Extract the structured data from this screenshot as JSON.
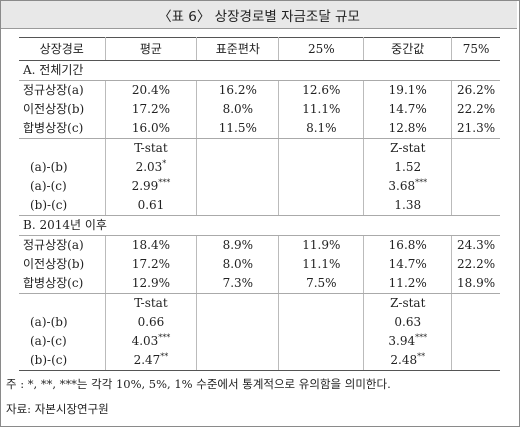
{
  "title": "〈표 6〉 상장경로별 자금조달 규모",
  "headers": [
    "상장경로",
    "평균",
    "표준편차",
    "25%",
    "중간값",
    "75%"
  ],
  "sectionA": {
    "label": "A. 전체기간",
    "rows": [
      {
        "name": "정규상장(a)",
        "mean": "20.4%",
        "sd": "16.2%",
        "p25": "12.6%",
        "median": "19.1%",
        "p75": "26.2%"
      },
      {
        "name": "이전상장(b)",
        "mean": "17.2%",
        "sd": "8.0%",
        "p25": "11.1%",
        "median": "14.7%",
        "p75": "22.2%"
      },
      {
        "name": "합병상장(c)",
        "mean": "16.0%",
        "sd": "11.5%",
        "p25": "8.1%",
        "median": "12.8%",
        "p75": "21.3%"
      }
    ],
    "t_label": "T-stat",
    "z_label": "Z-stat",
    "stats": [
      {
        "pair": "(a)-(b)",
        "t": "2.03",
        "t_sig": "*",
        "z": "1.52",
        "z_sig": ""
      },
      {
        "pair": "(a)-(c)",
        "t": "2.99",
        "t_sig": "***",
        "z": "3.68",
        "z_sig": "***"
      },
      {
        "pair": "(b)-(c)",
        "t": "0.61",
        "t_sig": "",
        "z": "1.38",
        "z_sig": ""
      }
    ]
  },
  "sectionB": {
    "label": "B. 2014년 이후",
    "rows": [
      {
        "name": "정규상장(a)",
        "mean": "18.4%",
        "sd": "8.9%",
        "p25": "11.9%",
        "median": "16.8%",
        "p75": "24.3%"
      },
      {
        "name": "이전상장(b)",
        "mean": "17.2%",
        "sd": "8.0%",
        "p25": "11.1%",
        "median": "14.7%",
        "p75": "22.2%"
      },
      {
        "name": "합병상장(c)",
        "mean": "12.9%",
        "sd": "7.3%",
        "p25": "7.5%",
        "median": "11.2%",
        "p75": "18.9%"
      }
    ],
    "t_label": "T-stat",
    "z_label": "Z-stat",
    "stats": [
      {
        "pair": "(a)-(b)",
        "t": "0.66",
        "t_sig": "",
        "z": "0.63",
        "z_sig": ""
      },
      {
        "pair": "(a)-(c)",
        "t": "4.03",
        "t_sig": "***",
        "z": "3.94",
        "z_sig": "***"
      },
      {
        "pair": "(b)-(c)",
        "t": "2.47",
        "t_sig": "**",
        "z": "2.48",
        "z_sig": "**"
      }
    ]
  },
  "note": "주  : *, **, ***는 각각 10%, 5%, 1% 수준에서 통계적으로 유의함을 의미한다.",
  "source": "자료: 자본시장연구원"
}
